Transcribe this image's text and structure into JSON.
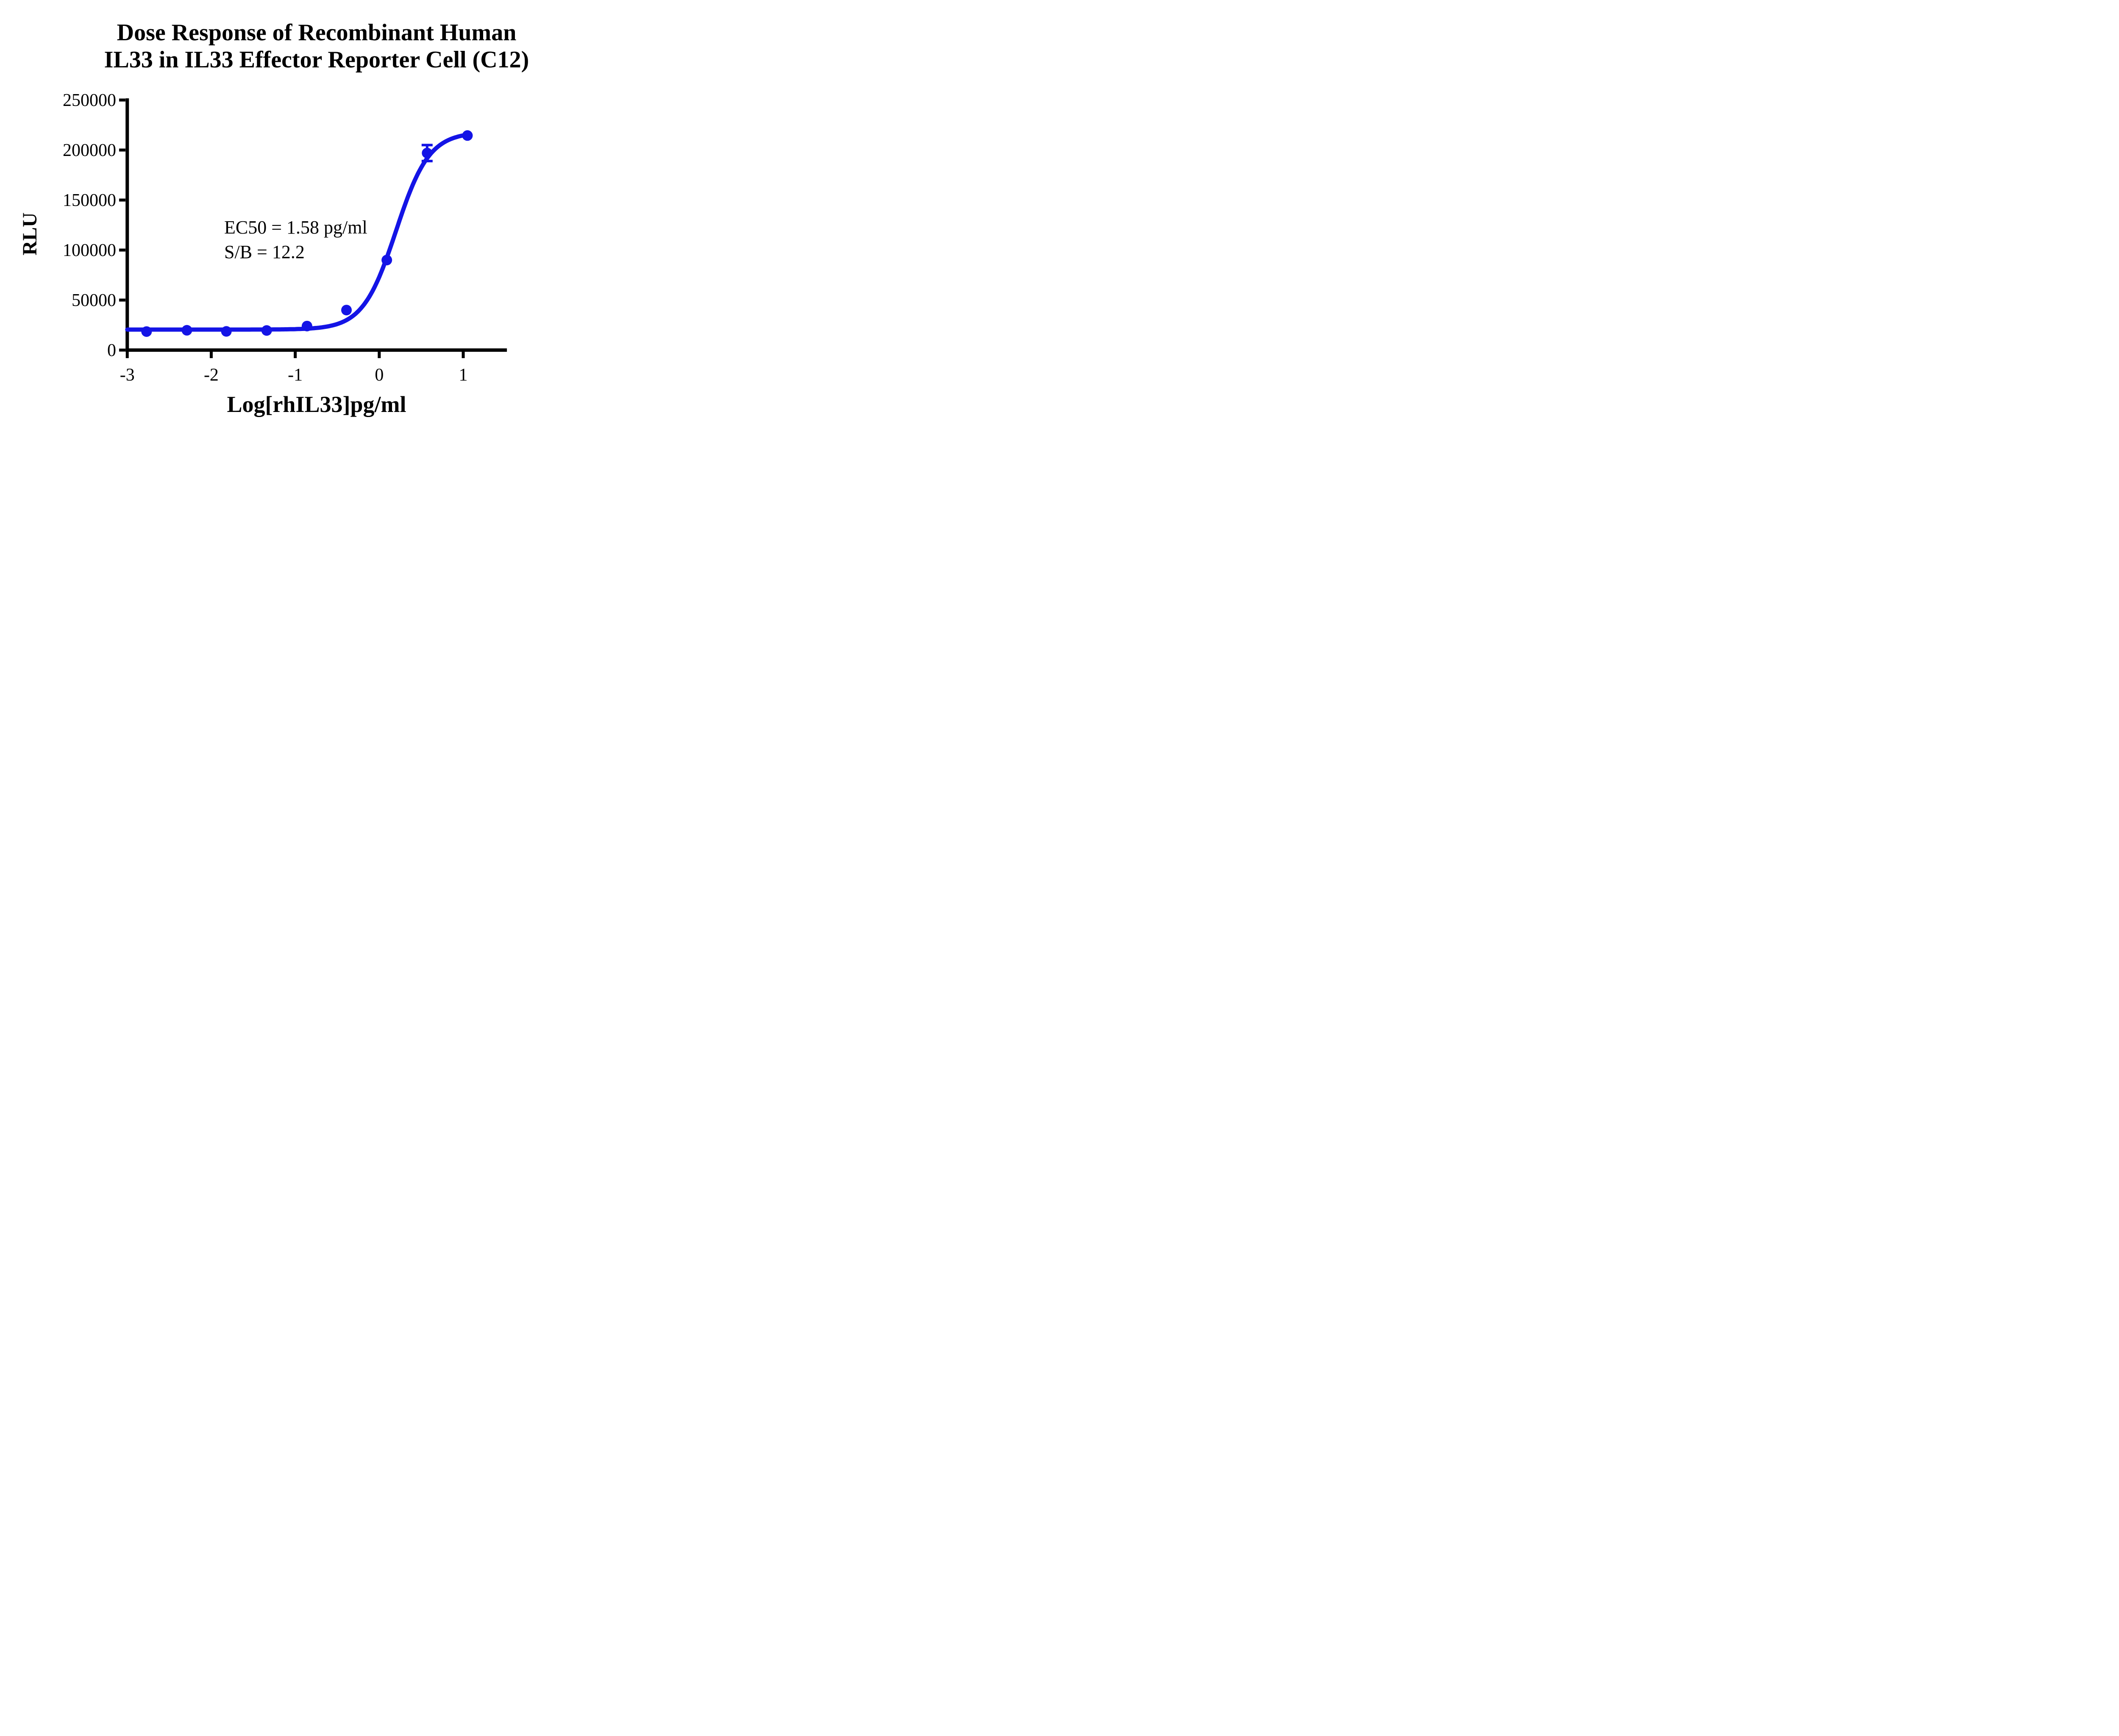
{
  "title": {
    "line1": "Dose Response of Recombinant Human",
    "line2": "IL33 in IL33 Effector Reporter Cell (C12)"
  },
  "annotation": {
    "line1": "EC50 = 1.58 pg/ml",
    "line2": "S/B = 12.2"
  },
  "chart_data": {
    "type": "scatter",
    "title": "Dose Response of Recombinant Human IL33 in IL33 Effector Reporter Cell (C12)",
    "xlabel": "Log[rhIL33]pg/ml",
    "ylabel": "RLU",
    "xlim": [
      -3,
      1.52
    ],
    "ylim": [
      0,
      250000
    ],
    "x_ticks": [
      "-3",
      "-2",
      "-1",
      "0",
      "1"
    ],
    "x_tick_values": [
      -3,
      -2,
      -1,
      0,
      1
    ],
    "y_ticks": [
      "0",
      "50000",
      "100000",
      "150000",
      "200000",
      "250000"
    ],
    "y_tick_values": [
      0,
      50000,
      100000,
      150000,
      200000,
      250000
    ],
    "grid": false,
    "legend": "none",
    "colors": {
      "series_blue": "#1414e6",
      "axis_black": "#000000"
    },
    "series": [
      {
        "name": "rhIL33",
        "color": "#1414e6",
        "marker": "circle",
        "points": [
          {
            "x": -2.77,
            "y": 18500
          },
          {
            "x": -2.29,
            "y": 19800
          },
          {
            "x": -1.82,
            "y": 18700
          },
          {
            "x": -1.34,
            "y": 19600
          },
          {
            "x": -0.86,
            "y": 24000
          },
          {
            "x": -0.39,
            "y": 40000
          },
          {
            "x": 0.09,
            "y": 90000
          },
          {
            "x": 0.57,
            "y": 197000,
            "error": 8000
          },
          {
            "x": 1.05,
            "y": 214500
          }
        ],
        "fit": {
          "model": "4PL-sigmoid",
          "bottom": 20500,
          "top": 218000,
          "log_ec50": 0.2,
          "hill": 2.2,
          "x_start": -3,
          "x_end": 1.05
        },
        "ec50_pg_ml": 1.58,
        "signal_to_background": 12.2
      }
    ]
  }
}
